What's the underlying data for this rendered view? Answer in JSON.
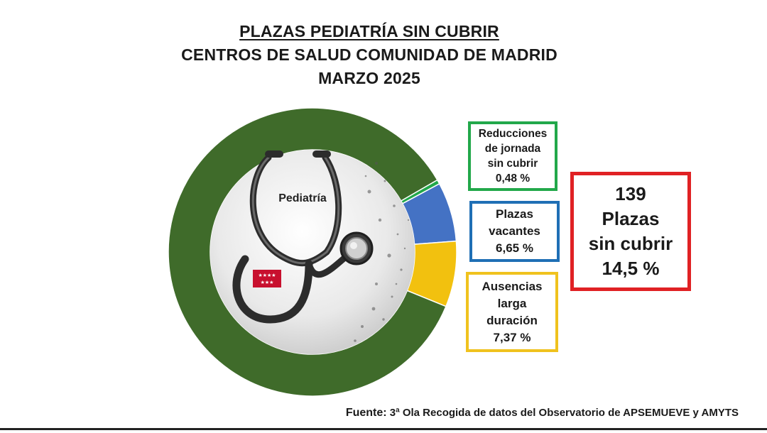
{
  "header": {
    "title": "PLAZAS PEDIATRÍA SIN CUBRIR",
    "subtitle": "CENTROS DE SALUD COMUNIDAD DE MADRID",
    "date": "MARZO 2025"
  },
  "center_label": "Pediatría",
  "legend": {
    "reducciones": {
      "line1": "Reducciones",
      "line2": "de jornada",
      "line3": "sin cubrir",
      "value": "0,48 %"
    },
    "vacantes": {
      "line1": "Plazas",
      "line2": "vacantes",
      "value": "6,65 %"
    },
    "ausencias": {
      "line1": "Ausencias",
      "line2": "larga",
      "line3": "duración",
      "value": "7,37 %"
    }
  },
  "total": {
    "count": "139",
    "line1": "Plazas",
    "line2": "sin cubrir",
    "value": "14,5 %"
  },
  "source": {
    "label": "Fuente:",
    "text": "3ª Ola Recogida de datos del Observatorio de APSEMUEVE y AMYTS"
  },
  "colors": {
    "cubiertas": "#3f6b2a",
    "reducciones": "#22a84a",
    "vacantes": "#4472c4",
    "ausencias": "#f2c10f",
    "total_border": "#e02124",
    "flag": "#c8102e"
  },
  "chart_data": {
    "type": "pie",
    "variant": "donut",
    "start_angle_deg": 60,
    "direction": "clockwise",
    "slices": [
      {
        "key": "reducciones",
        "value": 0.48
      },
      {
        "key": "vacantes",
        "value": 6.65
      },
      {
        "key": "ausencias",
        "value": 7.37
      },
      {
        "key": "cubiertas",
        "value": 85.5
      }
    ]
  }
}
